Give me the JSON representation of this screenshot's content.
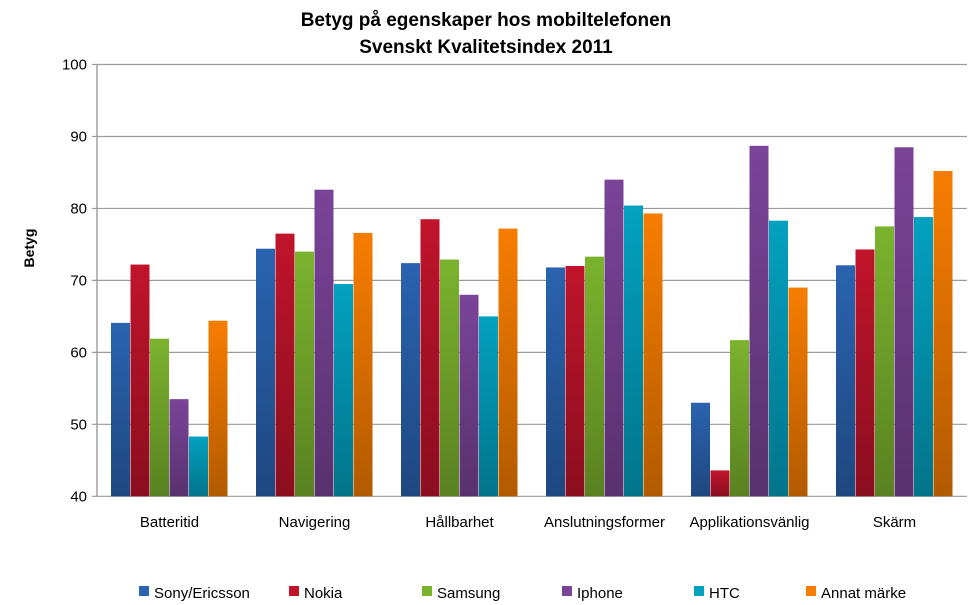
{
  "chart_data": {
    "type": "bar",
    "title": "Betyg på egenskaper hos mobiltelefonen",
    "subtitle": "Svenskt Kvalitetsindex 2011",
    "xlabel": "",
    "ylabel": "Betyg",
    "ylim": [
      40,
      100
    ],
    "yticks": [
      40,
      50,
      60,
      70,
      80,
      90,
      100
    ],
    "grid": true,
    "legend_position": "bottom",
    "categories": [
      "Batteritid",
      "Navigering",
      "Hållbarhet",
      "Anslutningsformer",
      "Applikationsvänlig",
      "Skärm"
    ],
    "series": [
      {
        "name": "Sony/Ericsson",
        "color": "#2a63b0",
        "values": [
          64.1,
          74.4,
          72.4,
          71.8,
          53.0,
          72.1
        ]
      },
      {
        "name": "Nokia",
        "color": "#c0142b",
        "values": [
          72.2,
          76.5,
          78.5,
          72.0,
          43.6,
          74.3
        ]
      },
      {
        "name": "Samsung",
        "color": "#7bb32e",
        "values": [
          61.9,
          74.0,
          72.9,
          73.3,
          61.7,
          77.5
        ]
      },
      {
        "name": "Iphone",
        "color": "#7a4499",
        "values": [
          53.5,
          82.6,
          68.0,
          84.0,
          88.7,
          88.5
        ]
      },
      {
        "name": "HTC",
        "color": "#03a1c0",
        "values": [
          48.3,
          69.5,
          65.0,
          80.4,
          78.3,
          78.8
        ]
      },
      {
        "name": "Annat märke",
        "color": "#f77d00",
        "values": [
          64.4,
          76.6,
          77.2,
          79.3,
          69.0,
          85.2
        ]
      }
    ]
  }
}
